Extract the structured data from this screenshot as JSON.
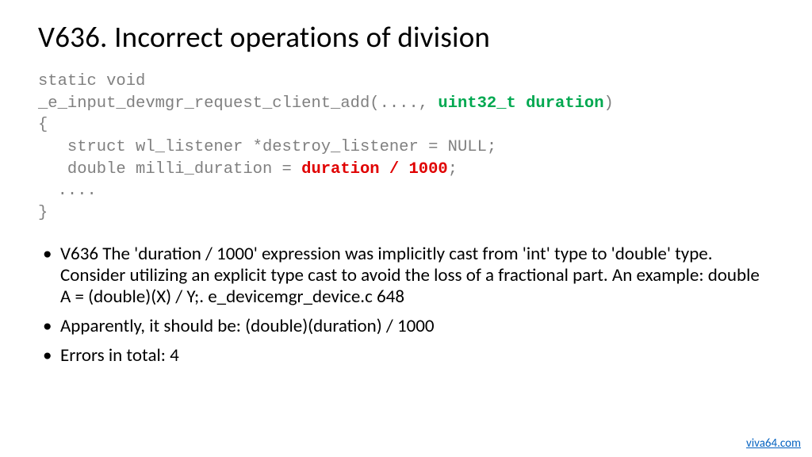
{
  "slide": {
    "title": "V636. Incorrect operations of division",
    "background_color": "#ffffff",
    "title_color": "#000000",
    "title_fontsize": 37
  },
  "code": {
    "font_family": "Courier New",
    "font_size": 20.5,
    "default_color": "#808080",
    "green_color": "#00a850",
    "red_color": "#e00000",
    "line1": "static void",
    "line2_a": "_e_input_devmgr_request_client_add(...., ",
    "line2_green": "uint32_t duration",
    "line2_b": ")",
    "line3": "{",
    "line4": "   struct wl_listener *destroy_listener = NULL;",
    "line5_a": "   double milli_duration = ",
    "line5_red": "duration / 1000",
    "line5_b": ";",
    "line6": "  ....",
    "line7": "}"
  },
  "bullets": {
    "font_size": 23,
    "text_color": "#000000",
    "items": [
      "V636 The 'duration / 1000' expression was implicitly cast from 'int' type to 'double' type. Consider utilizing an explicit type cast to avoid the loss of a fractional part. An example: double A = (double)(X) / Y;. e_devicemgr_device.c 648",
      "Apparently, it should be: (double)(duration) / 1000",
      "Errors in total: 4"
    ]
  },
  "footer": {
    "link_text": "viva64.com",
    "link_color": "#0563c1",
    "font_size": 15
  }
}
